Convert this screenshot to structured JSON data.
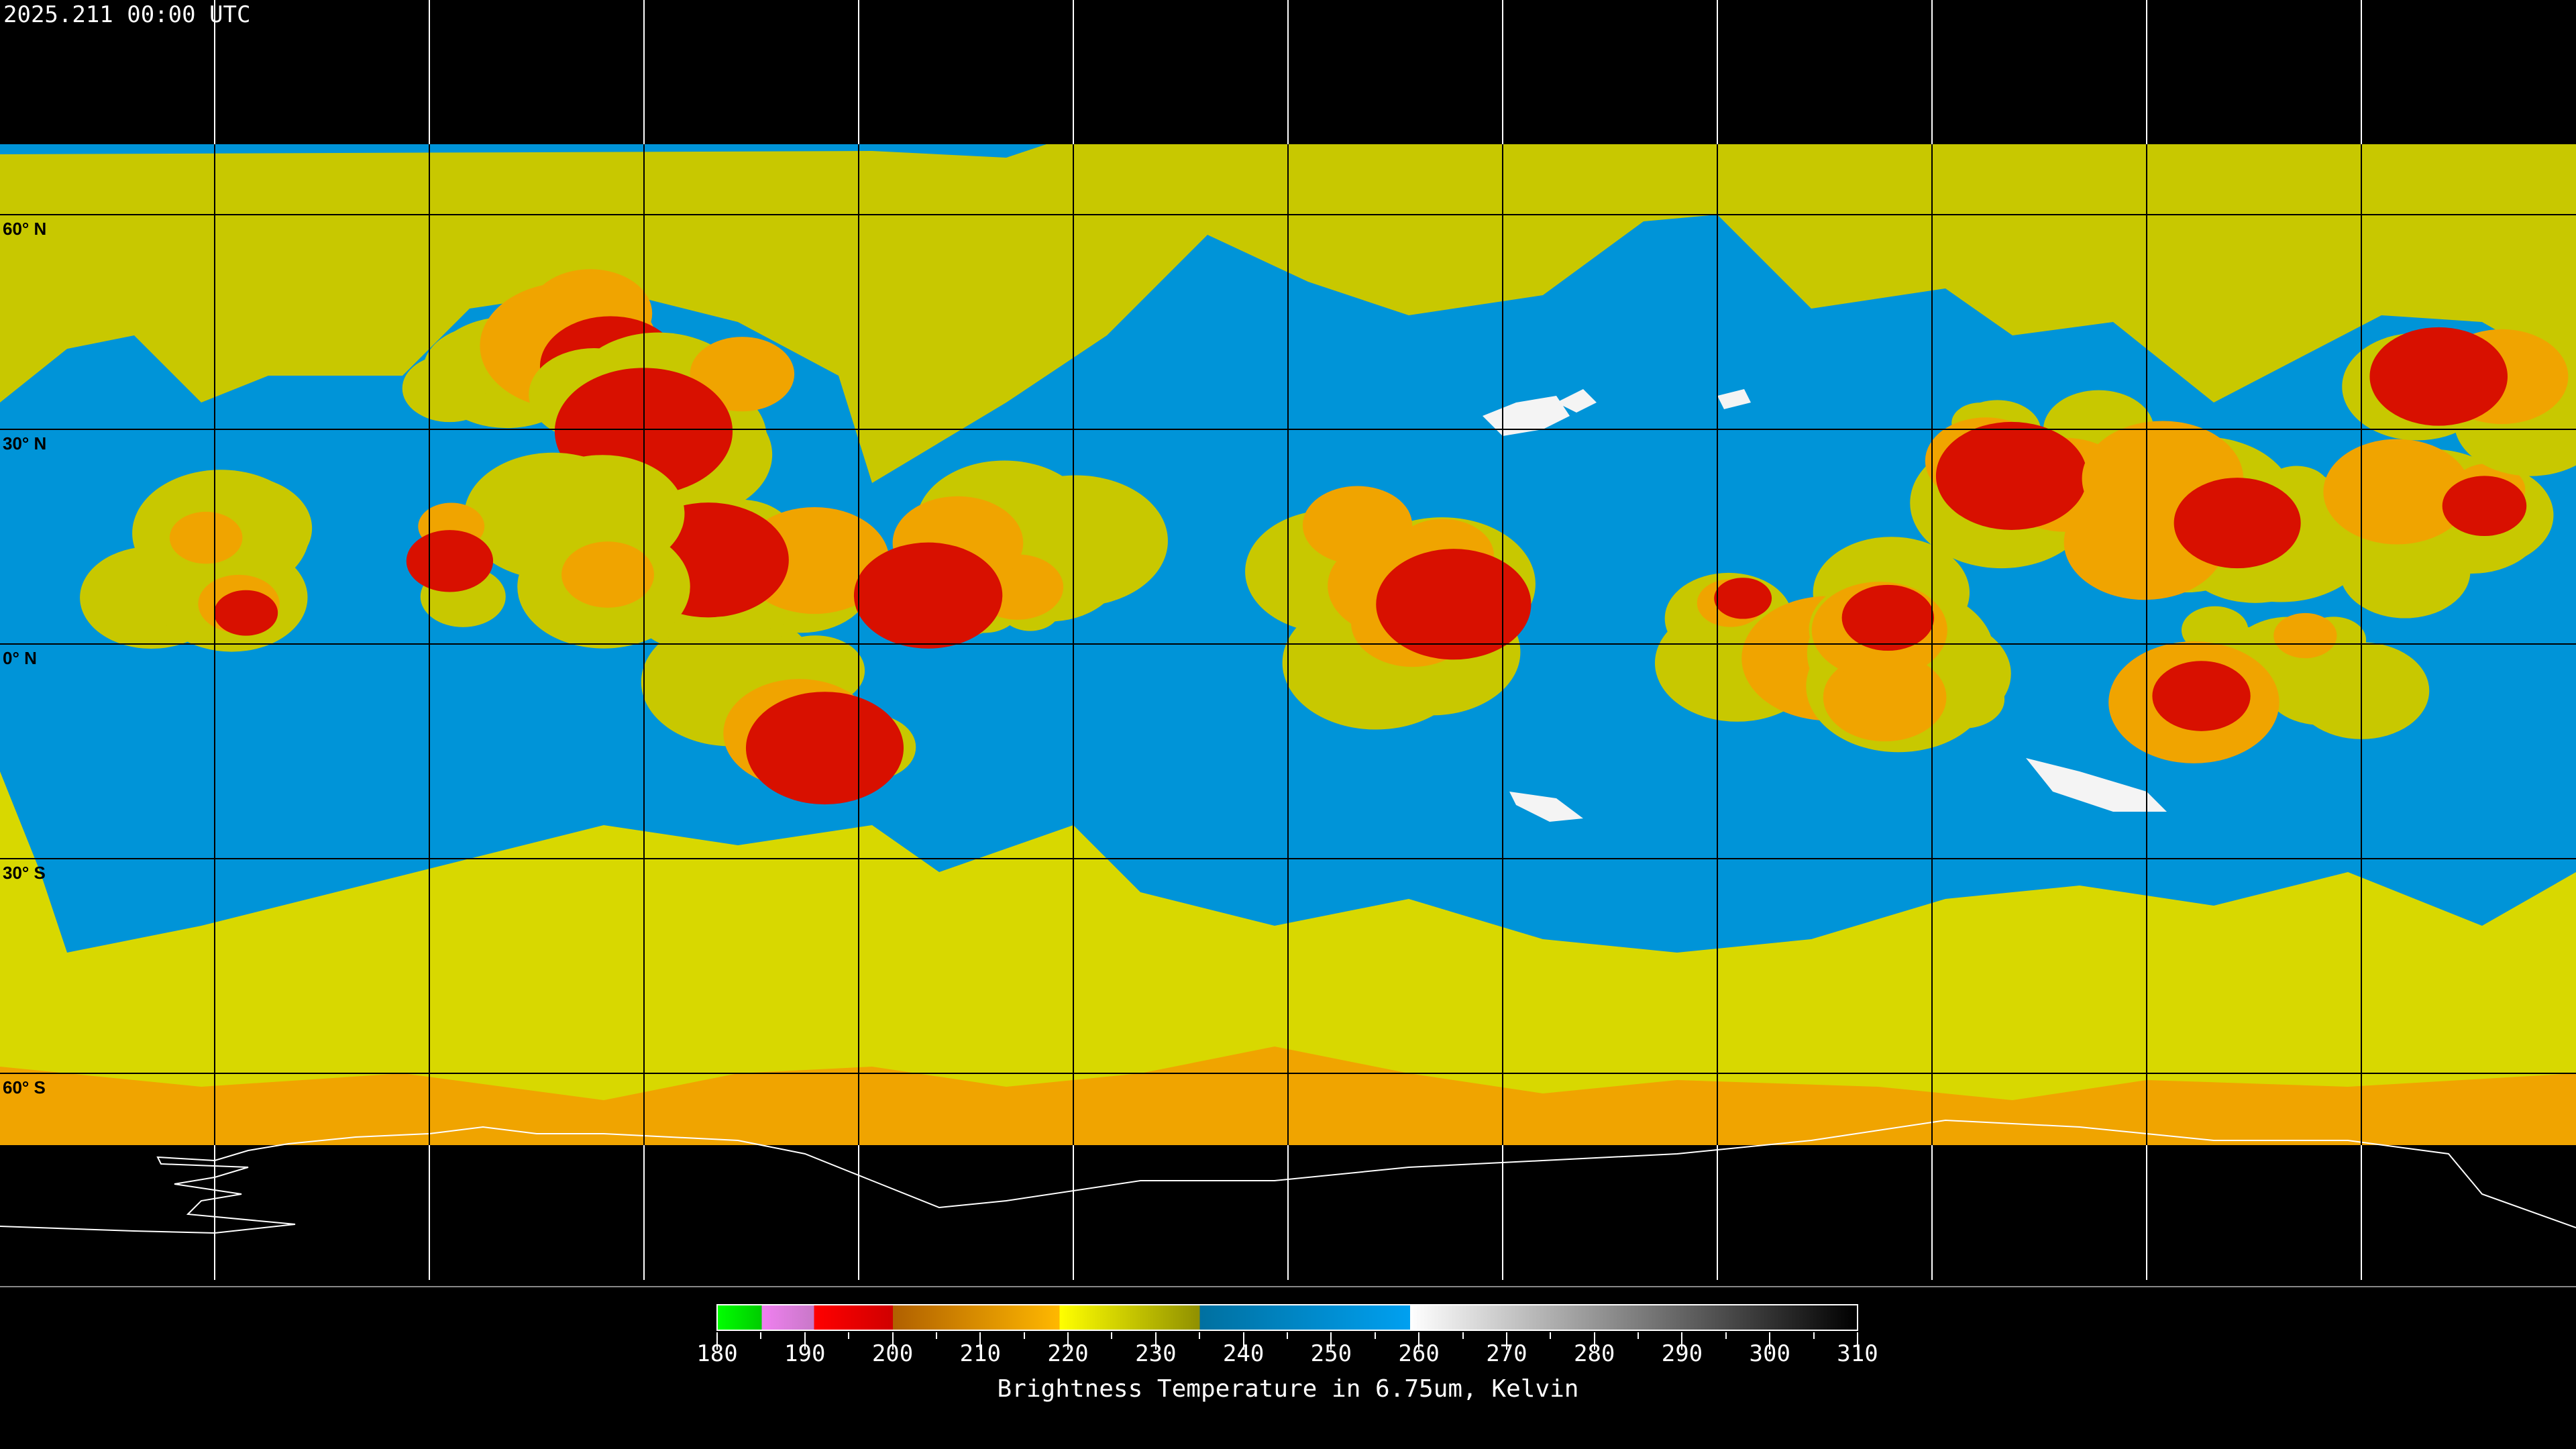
{
  "header": {
    "timestamp": "2025.211 00:00 UTC"
  },
  "map": {
    "projection": "equirectangular",
    "grid_spacing_degrees": 30,
    "lat_labels": [
      "60° N",
      "30° N",
      "0° N",
      "30° S",
      "60° S"
    ]
  },
  "colorbar": {
    "title": "Brightness Temperature in 6.75um, Kelvin",
    "min": 180,
    "max": 310,
    "tick_labels": [
      "180",
      "190",
      "200",
      "210",
      "220",
      "230",
      "240",
      "250",
      "260",
      "270",
      "280",
      "290",
      "300",
      "310"
    ],
    "segments": [
      {
        "from": 180,
        "to": 185,
        "colors": [
          "#00ff00",
          "#00cc00"
        ]
      },
      {
        "from": 185,
        "to": 191,
        "colors": [
          "#f080f0",
          "#c878c8"
        ]
      },
      {
        "from": 191,
        "to": 200,
        "colors": [
          "#ff0000",
          "#d00000"
        ]
      },
      {
        "from": 200,
        "to": 219,
        "colors": [
          "#b06000",
          "#ffb800"
        ]
      },
      {
        "from": 219,
        "to": 235,
        "colors": [
          "#ffff00",
          "#909000"
        ]
      },
      {
        "from": 235,
        "to": 259,
        "colors": [
          "#0070a0",
          "#00a0f0"
        ]
      },
      {
        "from": 259,
        "to": 310,
        "colors": [
          "#ffffff",
          "#000000"
        ]
      }
    ]
  }
}
